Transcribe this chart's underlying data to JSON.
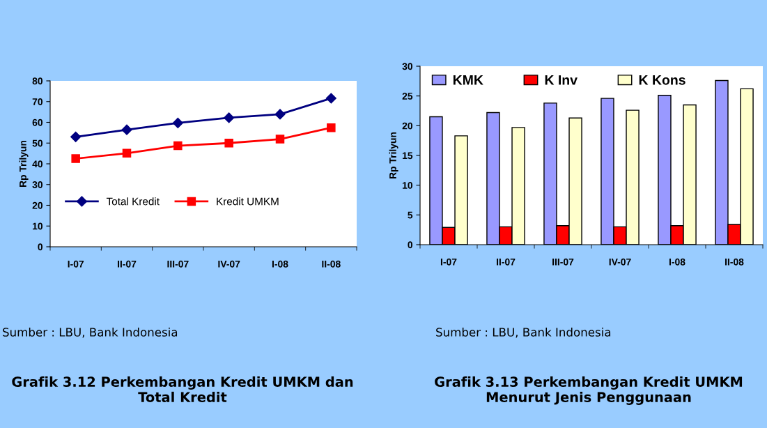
{
  "chart_data": [
    {
      "type": "line",
      "title": "Grafik 3.12 Perkembangan Kredit UMKM dan Total Kredit",
      "ylabel": "Rp Trilyun",
      "categories": [
        "I-07",
        "II-07",
        "III-07",
        "IV-07",
        "I-08",
        "II-08"
      ],
      "series": [
        {
          "name": "Total Kredit",
          "color": "#000080",
          "marker": "diamond",
          "values": [
            53.0,
            56.4,
            59.7,
            62.2,
            63.9,
            71.6
          ]
        },
        {
          "name": "Kredit UMKM",
          "color": "#ff0000",
          "marker": "square",
          "values": [
            42.5,
            45.1,
            48.7,
            50.0,
            51.9,
            57.4
          ]
        }
      ],
      "ylim": [
        0,
        80
      ],
      "yticks": [
        0,
        10,
        20,
        30,
        40,
        50,
        60,
        70,
        80
      ],
      "grid": false,
      "legend": "left",
      "annotations": [
        "Sumber : LBU, Bank Indonesia"
      ]
    },
    {
      "type": "bar",
      "title": "Grafik 3.13 Perkembangan Kredit UMKM Menurut Jenis Penggunaan",
      "ylabel": "Rp Trilyun",
      "categories": [
        "I-07",
        "II-07",
        "III-07",
        "IV-07",
        "I-08",
        "II-08"
      ],
      "series": [
        {
          "name": "KMK",
          "color": "#9999ff",
          "values": [
            21.5,
            22.2,
            23.8,
            24.6,
            25.1,
            27.6
          ]
        },
        {
          "name": "K Inv",
          "color": "#ff0000",
          "values": [
            2.9,
            3.0,
            3.2,
            3.0,
            3.2,
            3.4
          ]
        },
        {
          "name": "K Kons",
          "color": "#ffffcc",
          "values": [
            18.3,
            19.7,
            21.3,
            22.6,
            23.5,
            26.2
          ]
        }
      ],
      "ylim": [
        0,
        30
      ],
      "yticks": [
        0,
        5,
        10,
        15,
        20,
        25,
        30
      ],
      "grid": false,
      "legend": "top",
      "annotations": [
        "Sumber : LBU, Bank Indonesia"
      ]
    }
  ]
}
